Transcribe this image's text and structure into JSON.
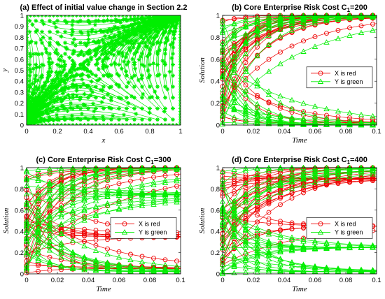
{
  "chart_data": [
    {
      "type": "scatter",
      "id": "a",
      "title": "(a) Effect of initial value change in Section 2.2",
      "xlabel": "x",
      "ylabel": "y",
      "xlim": [
        0,
        1
      ],
      "ylim": [
        0,
        1
      ],
      "xticks": [
        "0",
        "0.2",
        "0.4",
        "0.6",
        "0.8",
        "1"
      ],
      "yticks": [
        "0",
        "0.1",
        "0.2",
        "0.3",
        "0.4",
        "0.5",
        "0.6",
        "0.7",
        "0.8",
        "0.9",
        "1"
      ],
      "series": [
        {
          "color": "#00ee00",
          "marker": "star",
          "x0": [
            0.02,
            0.06,
            0.1,
            0.15,
            0.2,
            0.25,
            0.3,
            0.35,
            0.4,
            0.45,
            0.5,
            0.55,
            0.6,
            0.65,
            0.7,
            0.75,
            0.8,
            0.85,
            0.9,
            0.95
          ],
          "y0": [
            0.05,
            0.15,
            0.25,
            0.35,
            0.45,
            0.55,
            0.65,
            0.75,
            0.85,
            0.95
          ]
        }
      ],
      "grid": false
    },
    {
      "type": "line",
      "id": "b",
      "title_main": "(b) Core Enterprise Risk Cost C",
      "title_sub": "1",
      "title_tail": "=200",
      "xlabel": "Time",
      "ylabel": "Solution",
      "xlim": [
        0,
        0.1
      ],
      "ylim": [
        0,
        1
      ],
      "xticks": [
        "0",
        "0.02",
        "0.04",
        "0.06",
        "0.08",
        "0.1"
      ],
      "yticks": [
        "0",
        "0.2",
        "0.4",
        "0.6",
        "0.8",
        "1"
      ],
      "legend": {
        "position": "center-right",
        "entries": [
          {
            "label": "X is red",
            "color": "#ee0000",
            "marker": "circle"
          },
          {
            "label": "Y is green",
            "color": "#00ee00",
            "marker": "triangle"
          }
        ]
      },
      "series": [
        {
          "name": "X",
          "color": "#ee0000",
          "marker": "circle",
          "x0": [
            0.05,
            0.15,
            0.25,
            0.35,
            0.45,
            0.55,
            0.65,
            0.75,
            0.85,
            0.95
          ],
          "y0": [
            0.05,
            0.15,
            0.25,
            0.35,
            0.45,
            0.55,
            0.65,
            0.75,
            0.85,
            0.95
          ],
          "x_final": 1,
          "rate": 50
        },
        {
          "name": "Y",
          "color": "#00ee00",
          "marker": "triangle",
          "x0": [
            0.05,
            0.15,
            0.25,
            0.35,
            0.45,
            0.55,
            0.65,
            0.75,
            0.85,
            0.95
          ],
          "y0": [
            0.05,
            0.15,
            0.25,
            0.35,
            0.45,
            0.55,
            0.65,
            0.75,
            0.85,
            0.95
          ],
          "rate": 45
        }
      ],
      "grid": false
    },
    {
      "type": "line",
      "id": "c",
      "title_main": "(c) Core Enterprise Risk Cost C",
      "title_sub": "1",
      "title_tail": "=300",
      "xlabel": "Time",
      "ylabel": "Solution",
      "xlim": [
        0,
        0.1
      ],
      "ylim": [
        0,
        1
      ],
      "xticks": [
        "0",
        "0.02",
        "0.04",
        "0.06",
        "0.08",
        "0.1"
      ],
      "yticks": [
        "0",
        "0.2",
        "0.4",
        "0.6",
        "0.8",
        "1"
      ],
      "legend": {
        "position": "center-right",
        "entries": [
          {
            "label": "X is red",
            "color": "#ee0000",
            "marker": "circle"
          },
          {
            "label": "Y is green",
            "color": "#00ee00",
            "marker": "triangle"
          }
        ]
      },
      "series": [
        {
          "name": "X",
          "color": "#ee0000",
          "marker": "circle",
          "rate": 40
        },
        {
          "name": "Y",
          "color": "#00ee00",
          "marker": "triangle",
          "rate": 40
        }
      ],
      "grid": false
    },
    {
      "type": "line",
      "id": "d",
      "title_main": "(d) Core Enterprise Risk Cost C",
      "title_sub": "1",
      "title_tail": "=400",
      "xlabel": "Time",
      "ylabel": "Solution",
      "xlim": [
        0,
        0.1
      ],
      "ylim": [
        0,
        1
      ],
      "xticks": [
        "0",
        "0.02",
        "0.04",
        "0.06",
        "0.08",
        "0.1"
      ],
      "yticks": [
        "0",
        "0.2",
        "0.4",
        "0.6",
        "0.8",
        "1"
      ],
      "legend": {
        "position": "center-right",
        "entries": [
          {
            "label": "X is red",
            "color": "#ee0000",
            "marker": "circle"
          },
          {
            "label": "Y is green",
            "color": "#00ee00",
            "marker": "triangle"
          }
        ]
      },
      "series": [
        {
          "name": "X",
          "color": "#ee0000",
          "marker": "circle",
          "rate": 35
        },
        {
          "name": "Y",
          "color": "#00ee00",
          "marker": "triangle",
          "rate": 55
        }
      ],
      "grid": false
    }
  ]
}
